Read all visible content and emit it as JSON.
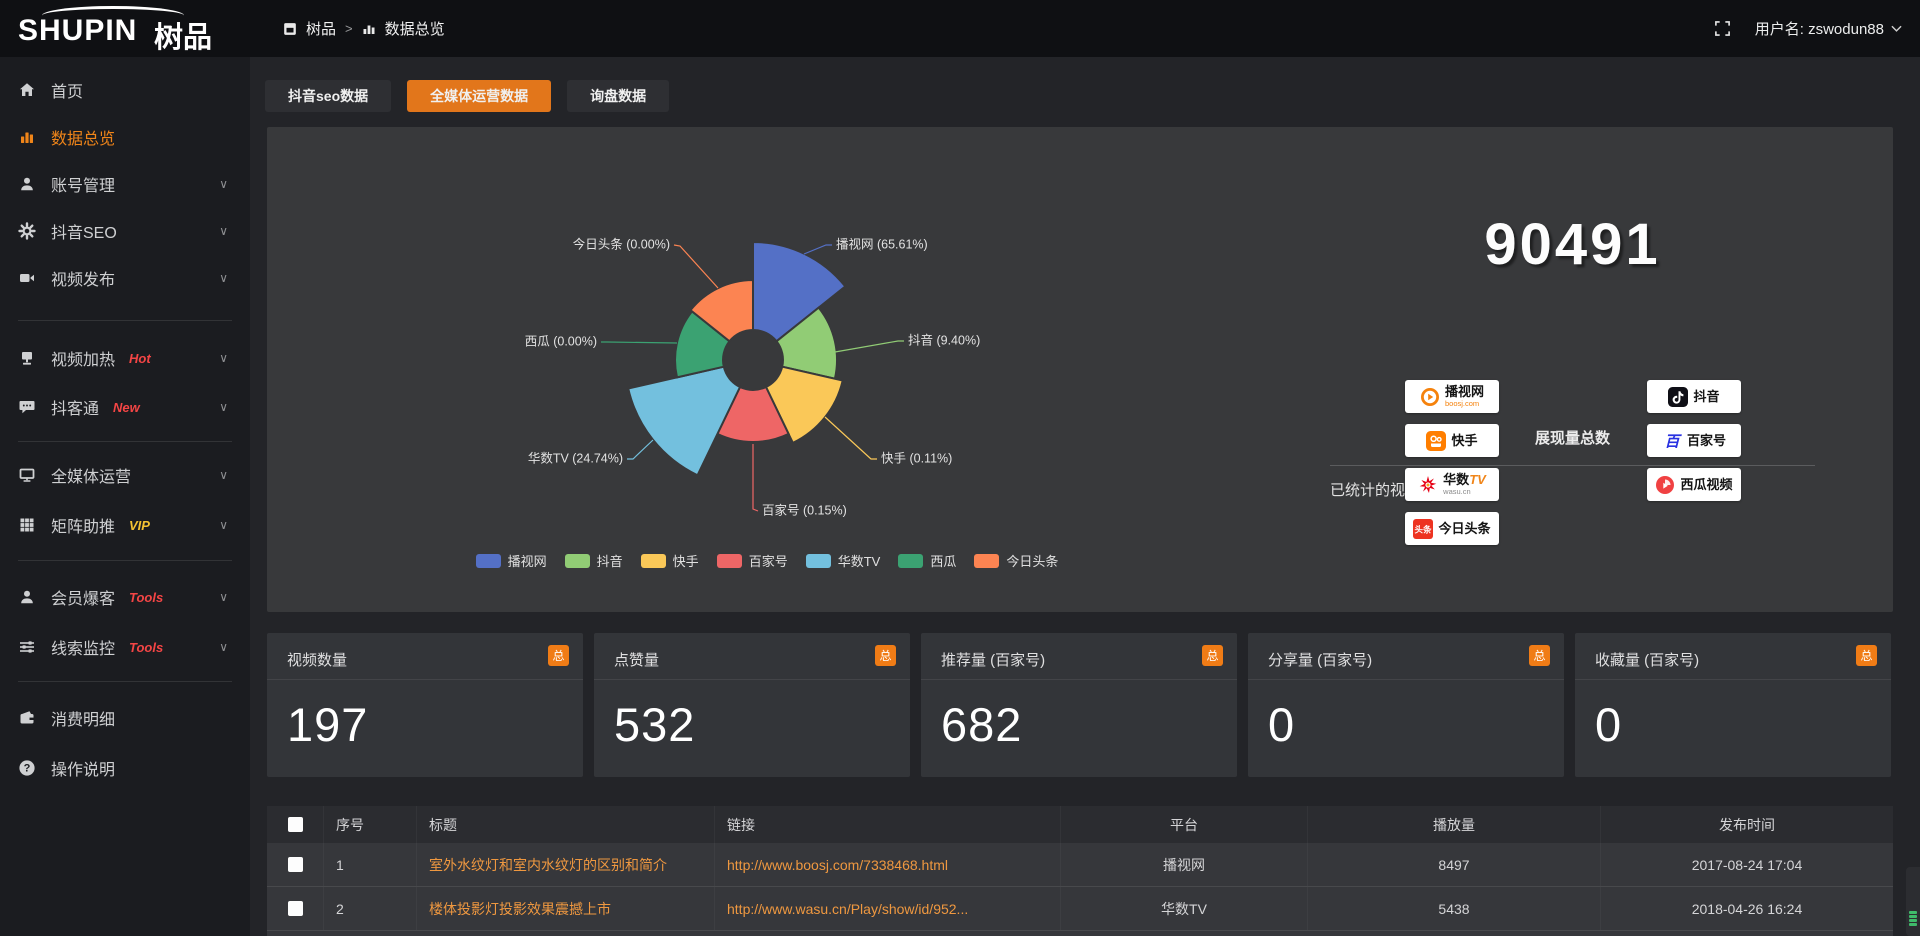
{
  "topbar": {
    "logo_main": "SHUPIN",
    "logo_cn": "树品",
    "breadcrumb_root": "树品",
    "breadcrumb_sep": ">",
    "breadcrumb_current": "数据总览",
    "username": "用户名: zswodun88"
  },
  "sidebar": {
    "items": [
      {
        "label": "首页",
        "icon": "home"
      },
      {
        "label": "数据总览",
        "icon": "chart",
        "active": true
      },
      {
        "label": "账号管理",
        "icon": "user",
        "chevron": true
      },
      {
        "label": "抖音SEO",
        "icon": "gear",
        "chevron": true
      },
      {
        "label": "视频发布",
        "icon": "videocam",
        "chevron": true,
        "divider_after": true
      },
      {
        "label": "视频加热",
        "icon": "heater",
        "badge": "Hot",
        "badge_color": "#f44545",
        "chevron": true
      },
      {
        "label": "抖客通",
        "icon": "chat",
        "badge": "New",
        "badge_color": "#f44545",
        "chevron": true,
        "divider_after": true
      },
      {
        "label": "全媒体运营",
        "icon": "monitor",
        "chevron": true
      },
      {
        "label": "矩阵助推",
        "icon": "grid",
        "badge": "VIP",
        "badge_color": "#f5c332",
        "chevron": true,
        "divider_after": true
      },
      {
        "label": "会员爆客",
        "icon": "user2",
        "badge": "Tools",
        "badge_color": "#f44545",
        "chevron": true
      },
      {
        "label": "线索监控",
        "icon": "sliders",
        "badge": "Tools",
        "badge_color": "#f44545",
        "chevron": true,
        "divider_after": true
      },
      {
        "label": "消费明细",
        "icon": "wallet"
      },
      {
        "label": "操作说明",
        "icon": "help"
      }
    ]
  },
  "tabs": [
    {
      "label": "抖音seo数据",
      "active": false
    },
    {
      "label": "全媒体运营数据",
      "active": true
    },
    {
      "label": "询盘数据",
      "active": false
    }
  ],
  "overview": {
    "total": "90491",
    "total_label": "展现量总数",
    "platforms_title": "已统计的视频平台:",
    "platforms_left": [
      {
        "name": "播视网",
        "sub": "boosj.com",
        "icon": "boosj"
      },
      {
        "name": "快手",
        "icon": "kuaishou"
      },
      {
        "name": "华数TV",
        "sub": "wasu.cn",
        "icon": "wasu"
      },
      {
        "name": "今日头条",
        "icon": "toutiao"
      }
    ],
    "platforms_right": [
      {
        "name": "抖音",
        "icon": "douyin"
      },
      {
        "name": "百家号",
        "icon": "baijiahao"
      },
      {
        "name": "西瓜视频",
        "icon": "xigua"
      }
    ]
  },
  "chart_data": {
    "type": "pie",
    "variant": "nightingale-rose-donut",
    "legend_position": "bottom",
    "items": [
      {
        "label": "播视网",
        "value": 65.61,
        "unit": "%",
        "display": "播视网 (65.61%)",
        "color": "#5470c6"
      },
      {
        "label": "抖音",
        "value": 9.4,
        "unit": "%",
        "display": "抖音 (9.40%)",
        "color": "#91cc75"
      },
      {
        "label": "快手",
        "value": 0.11,
        "unit": "%",
        "display": "快手 (0.11%)",
        "color": "#fac858"
      },
      {
        "label": "百家号",
        "value": 0.15,
        "unit": "%",
        "display": "百家号 (0.15%)",
        "color": "#ee6666"
      },
      {
        "label": "华数TV",
        "value": 24.74,
        "unit": "%",
        "display": "华数TV (24.74%)",
        "color": "#73c0de"
      },
      {
        "label": "西瓜",
        "value": 0.0,
        "unit": "%",
        "display": "西瓜 (0.00%)",
        "color": "#3ba272"
      },
      {
        "label": "今日头条",
        "value": 0.0,
        "unit": "%",
        "display": "今日头条 (0.00%)",
        "color": "#fc8452"
      }
    ],
    "legend": [
      "播视网",
      "抖音",
      "快手",
      "百家号",
      "华数TV",
      "西瓜",
      "今日头条"
    ]
  },
  "stat_cards": [
    {
      "title": "视频数量",
      "badge": "总",
      "value": "197"
    },
    {
      "title": "点赞量",
      "badge": "总",
      "value": "532"
    },
    {
      "title": "推荐量 (百家号)",
      "badge": "总",
      "value": "682"
    },
    {
      "title": "分享量 (百家号)",
      "badge": "总",
      "value": "0"
    },
    {
      "title": "收藏量 (百家号)",
      "badge": "总",
      "value": "0"
    }
  ],
  "table": {
    "columns": [
      "序号",
      "标题",
      "链接",
      "平台",
      "播放量",
      "发布时间"
    ],
    "rows": [
      {
        "index": "1",
        "title": "室外水纹灯和室内水纹灯的区别和简介",
        "link": "http://www.boosj.com/7338468.html",
        "platform": "播视网",
        "views": "8497",
        "time": "2017-08-24 17:04"
      },
      {
        "index": "2",
        "title": "楼体投影灯投影效果震撼上市",
        "link": "http://www.wasu.cn/Play/show/id/952...",
        "platform": "华数TV",
        "views": "5438",
        "time": "2018-04-26 16:24"
      }
    ]
  },
  "colors": {
    "accent_orange": "#e2761b",
    "active_menu_orange": "#f08519",
    "link_orange": "#ef9840",
    "hot_red": "#f44545",
    "vip_gold": "#f5c332",
    "panel_bg": "#38393b"
  }
}
